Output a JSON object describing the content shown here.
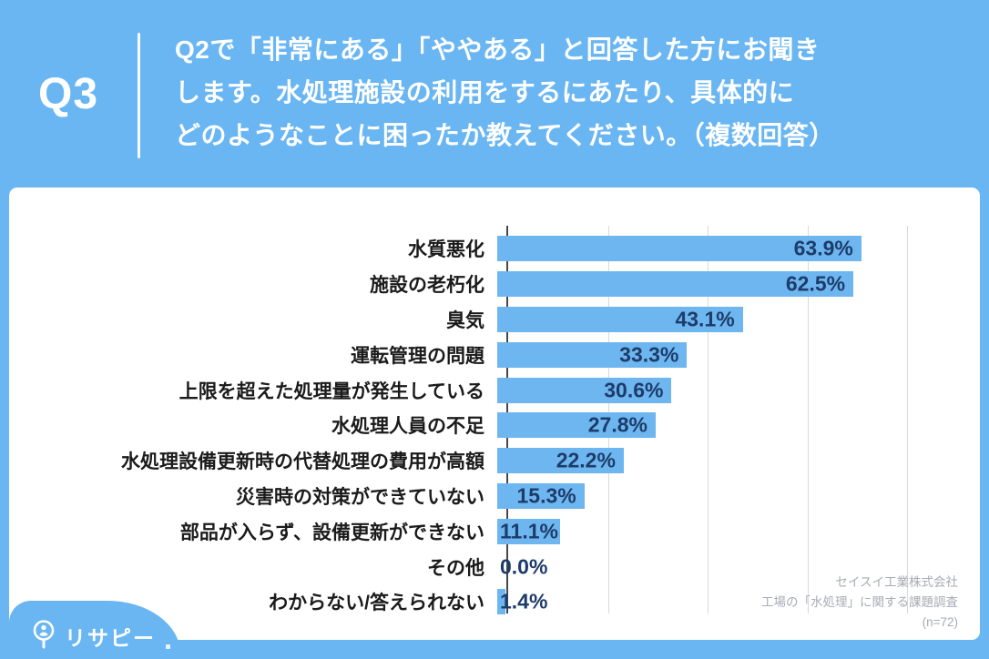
{
  "header": {
    "question_number": "Q3",
    "lines": [
      "Q2で「非常にある」「ややある」と回答した方にお聞き",
      "します。水処理施設の利用をするにあたり、具体的に",
      "どのようなことに困ったか教えてください。（複数回答）"
    ]
  },
  "chart_data": {
    "type": "bar",
    "orientation": "horizontal",
    "title": "水処理施設の利用をするにあたり、具体的にどのようなことに困ったか（複数回答）",
    "categories": [
      "水質悪化",
      "施設の老朽化",
      "臭気",
      "運転管理の問題",
      "上限を超えた処理量が発生している",
      "水処理人員の不足",
      "水処理設備更新時の代替処理の費用が高額",
      "災害時の対策ができていない",
      "部品が入らず、設備更新ができない",
      "その他",
      "わからない/答えられない"
    ],
    "values": [
      63.9,
      62.5,
      43.1,
      33.3,
      30.6,
      27.8,
      22.2,
      15.3,
      11.1,
      0.0,
      1.4
    ],
    "value_labels": [
      "63.9%",
      "62.5%",
      "43.1%",
      "33.3%",
      "30.6%",
      "27.8%",
      "22.2%",
      "15.3%",
      "11.1%",
      "0.0%",
      "1.4%"
    ],
    "xlim": [
      0,
      70
    ],
    "gridlines_percent": [
      17.5,
      35,
      52.5,
      70
    ],
    "grid": true,
    "legend": "none",
    "sample_size": "(n=72)"
  },
  "footer": {
    "lines": [
      "セイスイ工業株式会社",
      "工場の「水処理」に関する課題調査",
      "(n=72)"
    ]
  },
  "logo": {
    "text": "リサピー",
    "icon": "magnifier-person-icon"
  },
  "colors": {
    "background": "#69b6f2",
    "card": "#ffffff",
    "bar": "#6db6f0",
    "value_text": "#1d3c6a",
    "category_text": "#1b1b1b",
    "header_text": "#ffffff",
    "grid": "#d9d9d9",
    "axis": "#474747",
    "footer_text": "#a6acb3"
  }
}
